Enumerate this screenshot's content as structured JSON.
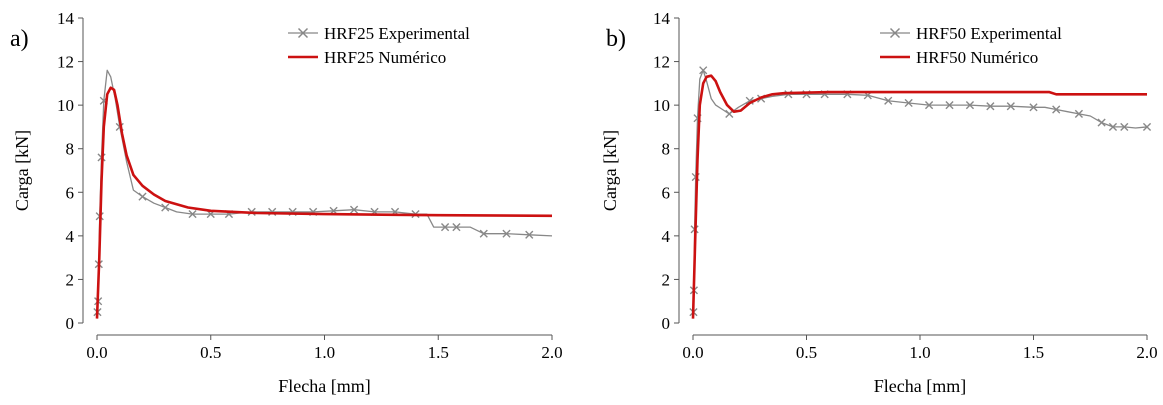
{
  "colors": {
    "experimental": "#888888",
    "numerico": "#cc1111",
    "axis": "#555555"
  },
  "chart_data": [
    {
      "type": "line",
      "panel_label": "a)",
      "xlabel": "Flecha [mm]",
      "ylabel": "Carga [kN]",
      "xlim": [
        0,
        2.0
      ],
      "ylim": [
        0,
        14
      ],
      "xticks": [
        0.0,
        0.5,
        1.0,
        1.5,
        2.0
      ],
      "xtick_labels": [
        "0.0",
        "0.5",
        "1.0",
        "1.5",
        "2.0"
      ],
      "yticks": [
        0,
        2,
        4,
        6,
        8,
        10,
        12,
        14
      ],
      "ytick_labels": [
        "0",
        "2",
        "4",
        "6",
        "8",
        "10",
        "12",
        "14"
      ],
      "grid": false,
      "legend_position": "top-right",
      "series": [
        {
          "name": "HRF25 Experimental",
          "marker": "x",
          "x": [
            0.0,
            0.002,
            0.005,
            0.008,
            0.012,
            0.02,
            0.03,
            0.045,
            0.06,
            0.08,
            0.1,
            0.13,
            0.16,
            0.2,
            0.25,
            0.3,
            0.35,
            0.42,
            0.5,
            0.58,
            0.68,
            0.77,
            0.86,
            0.95,
            1.04,
            1.13,
            1.22,
            1.31,
            1.4,
            1.45,
            1.48,
            1.53,
            1.58,
            1.64,
            1.7,
            1.8,
            1.9,
            2.0
          ],
          "y": [
            0.2,
            0.5,
            1.0,
            2.7,
            4.9,
            7.6,
            10.2,
            11.6,
            11.3,
            10.3,
            9.0,
            7.4,
            6.1,
            5.8,
            5.5,
            5.3,
            5.1,
            5.0,
            5.0,
            5.0,
            5.1,
            5.1,
            5.1,
            5.1,
            5.15,
            5.2,
            5.1,
            5.1,
            5.0,
            5.0,
            4.4,
            4.4,
            4.4,
            4.4,
            4.1,
            4.1,
            4.05,
            4.0
          ],
          "marker_x": [
            0.002,
            0.005,
            0.008,
            0.012,
            0.02,
            0.03,
            0.1,
            0.2,
            0.3,
            0.42,
            0.5,
            0.58,
            0.68,
            0.77,
            0.86,
            0.95,
            1.04,
            1.13,
            1.22,
            1.31,
            1.4,
            1.53,
            1.58,
            1.7,
            1.8,
            1.9
          ],
          "marker_y": [
            0.5,
            1.0,
            2.7,
            4.9,
            7.6,
            10.2,
            9.0,
            5.8,
            5.3,
            5.0,
            5.0,
            5.0,
            5.1,
            5.1,
            5.1,
            5.1,
            5.15,
            5.2,
            5.1,
            5.1,
            5.0,
            4.4,
            4.4,
            4.1,
            4.1,
            4.05
          ]
        },
        {
          "name": "HRF25 Numérico",
          "marker": "none",
          "x": [
            0.0,
            0.01,
            0.02,
            0.03,
            0.045,
            0.06,
            0.075,
            0.09,
            0.11,
            0.13,
            0.16,
            0.2,
            0.25,
            0.3,
            0.4,
            0.5,
            0.7,
            1.0,
            1.5,
            2.0
          ],
          "y": [
            0.2,
            3.0,
            6.5,
            9.0,
            10.5,
            10.8,
            10.7,
            10.0,
            8.7,
            7.7,
            6.8,
            6.3,
            5.9,
            5.6,
            5.3,
            5.15,
            5.05,
            5.0,
            4.95,
            4.92
          ]
        }
      ]
    },
    {
      "type": "line",
      "panel_label": "b)",
      "xlabel": "Flecha [mm]",
      "ylabel": "Carga [kN]",
      "xlim": [
        0,
        2.0
      ],
      "ylim": [
        0,
        14
      ],
      "xticks": [
        0.0,
        0.5,
        1.0,
        1.5,
        2.0
      ],
      "xtick_labels": [
        "0.0",
        "0.5",
        "1.0",
        "1.5",
        "2.0"
      ],
      "yticks": [
        0,
        2,
        4,
        6,
        8,
        10,
        12,
        14
      ],
      "ytick_labels": [
        "0",
        "2",
        "4",
        "6",
        "8",
        "10",
        "12",
        "14"
      ],
      "grid": false,
      "legend_position": "top-right",
      "series": [
        {
          "name": "HRF50 Experimental",
          "marker": "x",
          "x": [
            0.0,
            0.002,
            0.004,
            0.007,
            0.012,
            0.02,
            0.03,
            0.045,
            0.06,
            0.08,
            0.1,
            0.13,
            0.16,
            0.2,
            0.25,
            0.3,
            0.35,
            0.42,
            0.5,
            0.58,
            0.68,
            0.77,
            0.86,
            0.95,
            1.04,
            1.13,
            1.22,
            1.31,
            1.4,
            1.5,
            1.55,
            1.6,
            1.65,
            1.7,
            1.75,
            1.8,
            1.85,
            1.9,
            1.95,
            2.0
          ],
          "y": [
            0.2,
            0.5,
            1.5,
            4.3,
            6.7,
            9.4,
            11.2,
            11.6,
            11.1,
            10.3,
            10.0,
            9.8,
            9.6,
            9.9,
            10.2,
            10.3,
            10.4,
            10.5,
            10.5,
            10.5,
            10.5,
            10.45,
            10.2,
            10.1,
            10.0,
            10.0,
            10.0,
            9.95,
            9.95,
            9.9,
            9.9,
            9.8,
            9.7,
            9.6,
            9.5,
            9.2,
            9.0,
            9.0,
            8.95,
            9.0
          ],
          "marker_x": [
            0.002,
            0.004,
            0.007,
            0.012,
            0.02,
            0.045,
            0.16,
            0.25,
            0.3,
            0.42,
            0.5,
            0.58,
            0.68,
            0.77,
            0.86,
            0.95,
            1.04,
            1.13,
            1.22,
            1.31,
            1.4,
            1.5,
            1.6,
            1.7,
            1.8,
            1.85,
            1.9,
            2.0
          ],
          "marker_y": [
            0.5,
            1.5,
            4.3,
            6.7,
            9.4,
            11.6,
            9.6,
            10.2,
            10.3,
            10.5,
            10.5,
            10.5,
            10.5,
            10.45,
            10.2,
            10.1,
            10.0,
            10.0,
            10.0,
            9.95,
            9.95,
            9.9,
            9.8,
            9.6,
            9.2,
            9.0,
            9.0,
            9.0
          ]
        },
        {
          "name": "HRF50 Numérico",
          "marker": "none",
          "x": [
            0.0,
            0.01,
            0.02,
            0.03,
            0.045,
            0.06,
            0.08,
            0.1,
            0.12,
            0.15,
            0.18,
            0.21,
            0.25,
            0.3,
            0.35,
            0.4,
            0.6,
            0.8,
            1.0,
            1.05,
            1.2,
            1.5,
            1.57,
            1.6,
            2.0
          ],
          "y": [
            0.2,
            4.0,
            7.5,
            10.0,
            11.0,
            11.3,
            11.35,
            11.1,
            10.6,
            10.0,
            9.7,
            9.75,
            10.1,
            10.35,
            10.5,
            10.55,
            10.6,
            10.6,
            10.6,
            10.6,
            10.6,
            10.6,
            10.6,
            10.5,
            10.5
          ]
        }
      ]
    }
  ]
}
